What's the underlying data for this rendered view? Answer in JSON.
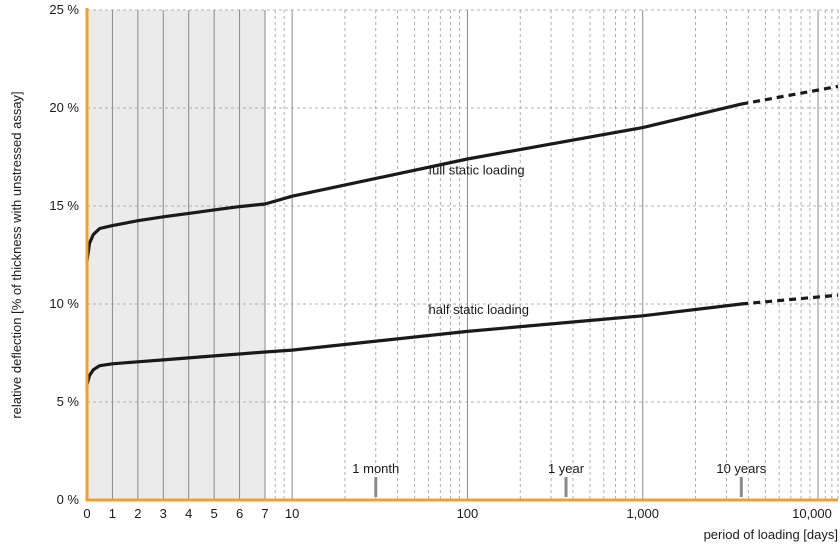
{
  "chart_data": {
    "type": "line",
    "xlabel": "period of loading [days]",
    "ylabel": "relative deflection [% of thickness with unstressed assay]",
    "x_scale": "linear 0–7 days, logarithmic from 7 days",
    "xlim": [
      0,
      13000
    ],
    "ylim": [
      0,
      25
    ],
    "x_ticks": [
      {
        "value": 0,
        "label": "0"
      },
      {
        "value": 1,
        "label": "1"
      },
      {
        "value": 2,
        "label": "2"
      },
      {
        "value": 3,
        "label": "3"
      },
      {
        "value": 4,
        "label": "4"
      },
      {
        "value": 5,
        "label": "5"
      },
      {
        "value": 6,
        "label": "6"
      },
      {
        "value": 7,
        "label": "7"
      },
      {
        "value": 10,
        "label": "10"
      },
      {
        "value": 100,
        "label": "100"
      },
      {
        "value": 1000,
        "label": "1,000"
      },
      {
        "value": 10000,
        "label": "10,000"
      }
    ],
    "y_ticks": [
      {
        "value": 0,
        "label": "0 %"
      },
      {
        "value": 5,
        "label": "5 %"
      },
      {
        "value": 10,
        "label": "10 %"
      },
      {
        "value": 15,
        "label": "15 %"
      },
      {
        "value": 20,
        "label": "20 %"
      },
      {
        "value": 25,
        "label": "25 %"
      }
    ],
    "shaded_range": [
      0,
      7
    ],
    "grid": true,
    "annotations": [
      {
        "text": "1 month",
        "x": 30
      },
      {
        "text": "1 year",
        "x": 365
      },
      {
        "text": "10 years",
        "x": 3650
      }
    ],
    "series": [
      {
        "name": "full static loading",
        "color": "#1a1a1a",
        "points": [
          {
            "x": 0,
            "y": 12.2
          },
          {
            "x": 0.1,
            "y": 13.1
          },
          {
            "x": 0.25,
            "y": 13.55
          },
          {
            "x": 0.5,
            "y": 13.85
          },
          {
            "x": 1,
            "y": 14.0
          },
          {
            "x": 2,
            "y": 14.25
          },
          {
            "x": 3,
            "y": 14.45
          },
          {
            "x": 4,
            "y": 14.62
          },
          {
            "x": 5,
            "y": 14.8
          },
          {
            "x": 6,
            "y": 14.97
          },
          {
            "x": 7,
            "y": 15.1
          },
          {
            "x": 10,
            "y": 15.5
          },
          {
            "x": 100,
            "y": 17.4
          },
          {
            "x": 1000,
            "y": 19.0
          },
          {
            "x": 3650,
            "y": 20.2
          }
        ],
        "extrapolated": [
          {
            "x": 3650,
            "y": 20.2
          },
          {
            "x": 13000,
            "y": 21.1
          }
        ]
      },
      {
        "name": "half static loading",
        "color": "#1a1a1a",
        "points": [
          {
            "x": 0,
            "y": 5.9
          },
          {
            "x": 0.1,
            "y": 6.35
          },
          {
            "x": 0.25,
            "y": 6.65
          },
          {
            "x": 0.5,
            "y": 6.85
          },
          {
            "x": 1,
            "y": 6.95
          },
          {
            "x": 2,
            "y": 7.05
          },
          {
            "x": 3,
            "y": 7.15
          },
          {
            "x": 4,
            "y": 7.25
          },
          {
            "x": 5,
            "y": 7.35
          },
          {
            "x": 6,
            "y": 7.45
          },
          {
            "x": 7,
            "y": 7.55
          },
          {
            "x": 10,
            "y": 7.65
          },
          {
            "x": 100,
            "y": 8.6
          },
          {
            "x": 1000,
            "y": 9.4
          },
          {
            "x": 3650,
            "y": 10.0
          }
        ],
        "extrapolated": [
          {
            "x": 3650,
            "y": 10.0
          },
          {
            "x": 13000,
            "y": 10.45
          }
        ]
      }
    ]
  }
}
